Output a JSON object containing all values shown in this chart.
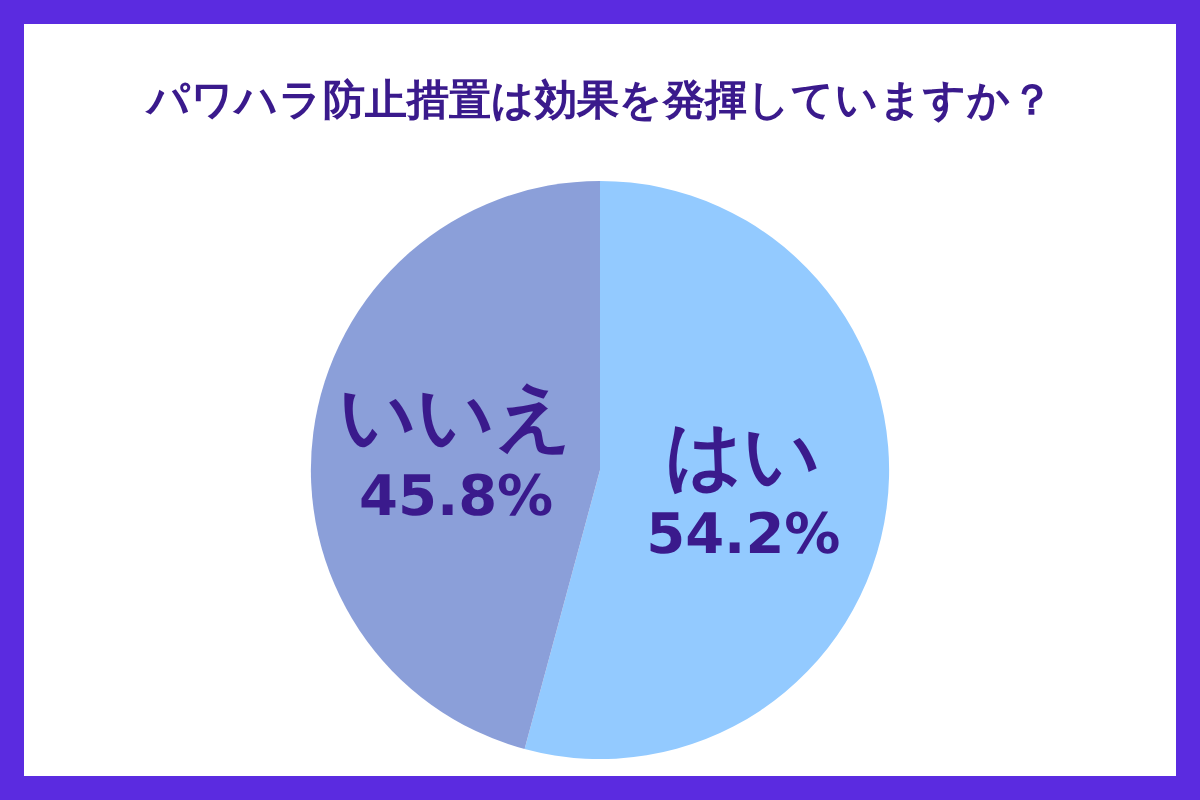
{
  "chart_data": {
    "type": "pie",
    "title": "パワハラ防止措置は効果を発揮していますか？",
    "categories": [
      "はい",
      "いいえ"
    ],
    "values": [
      54.2,
      45.8
    ],
    "value_labels": [
      "54.2%",
      "45.8%"
    ],
    "colors": [
      "#93caff",
      "#8b9fd9"
    ],
    "legend": false
  }
}
